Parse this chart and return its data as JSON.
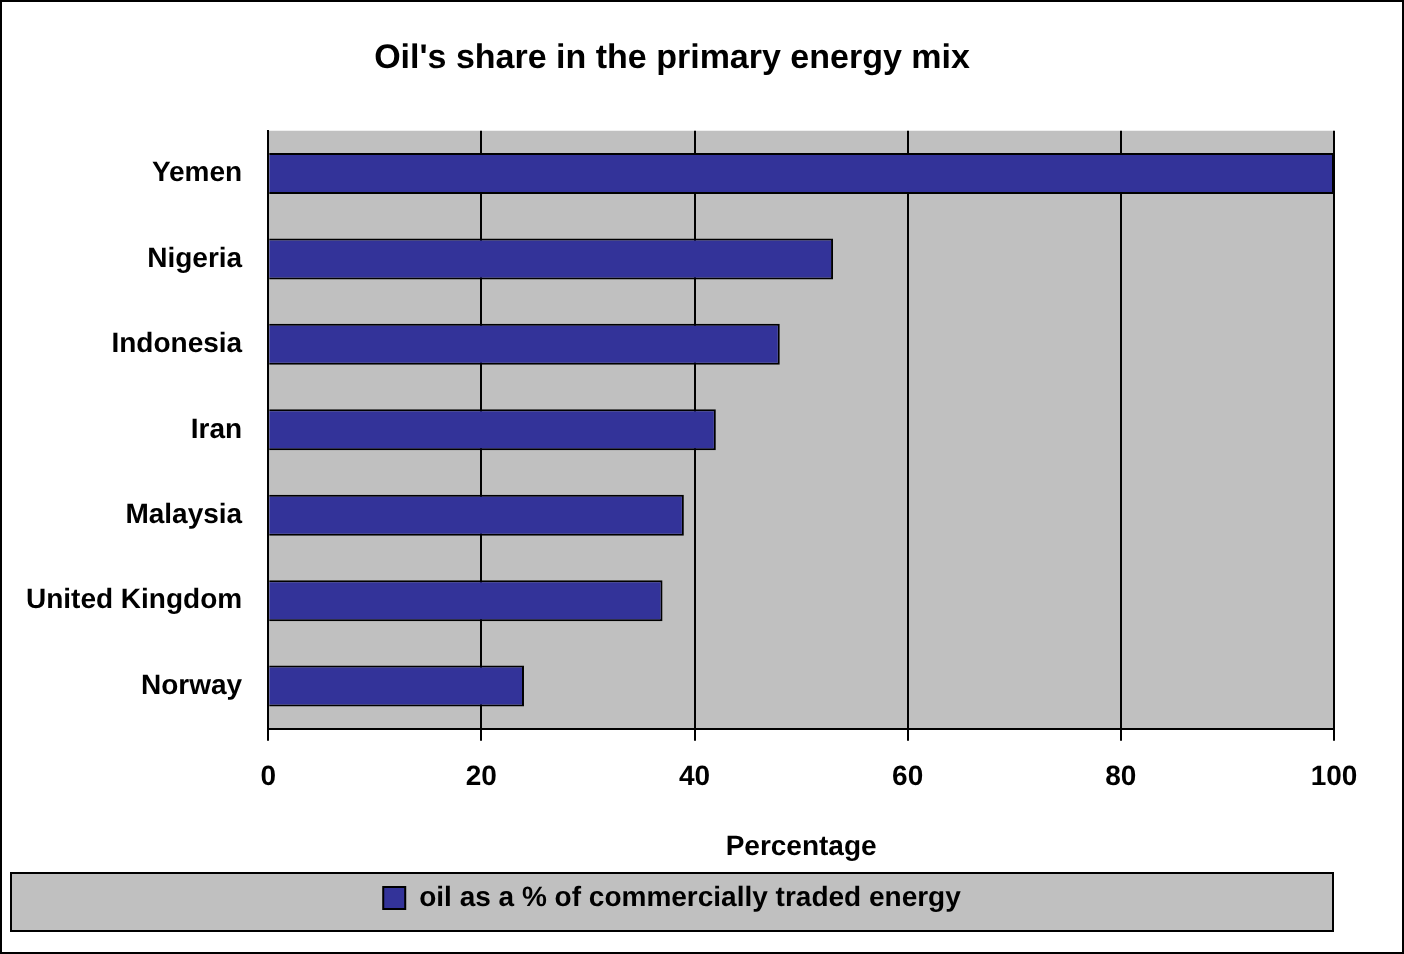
{
  "chart_data": {
    "type": "bar",
    "orientation": "horizontal",
    "title": "Oil's share in the primary energy mix",
    "xlabel": "Percentage",
    "categories": [
      "Yemen",
      "Nigeria",
      "Indonesia",
      "Iran",
      "Malaysia",
      "United Kingdom",
      "Norway"
    ],
    "series": [
      {
        "name": "oil as a % of commercially traded energy",
        "color": "#333399",
        "values": [
          100,
          53,
          48,
          42,
          39,
          37,
          24
        ]
      }
    ],
    "xlim": [
      0,
      100
    ],
    "xticks": [
      0,
      20,
      40,
      60,
      80,
      100
    ],
    "grid": "x",
    "legend": "bottom"
  }
}
